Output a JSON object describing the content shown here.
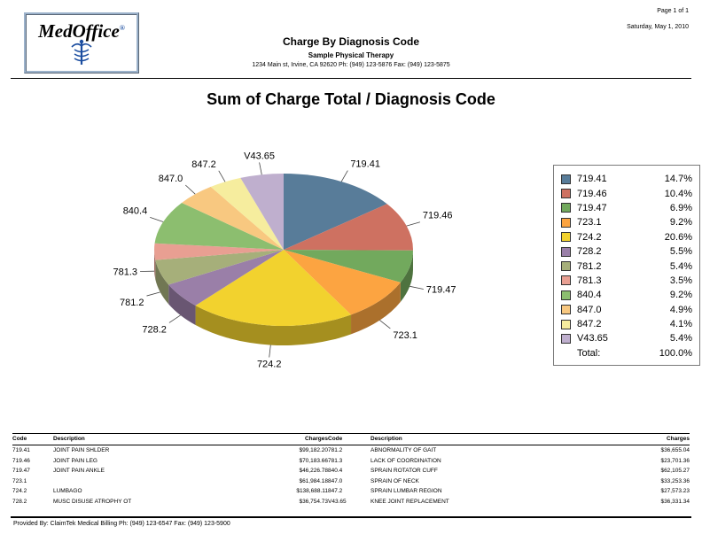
{
  "meta": {
    "page_label": "Page 1 of 1",
    "date": "Saturday, May 1, 2010"
  },
  "header": {
    "logo_text": "MedOffice",
    "logo_reg": "®",
    "title": "Charge By Diagnosis Code",
    "practice": "Sample Physical Therapy",
    "address": "1234 Main st, Irvine, CA 92620 Ph: (949) 123-5876 Fax: (949) 123-5875"
  },
  "chart_data": {
    "type": "pie",
    "style": "3d",
    "title": "Sum of Charge Total / Diagnosis Code",
    "legend_position": "right",
    "slices": [
      {
        "label": "719.41",
        "percent": 14.7,
        "value": 99182.2,
        "color": "#587C99"
      },
      {
        "label": "719.46",
        "percent": 10.4,
        "value": 70183.66,
        "color": "#CE7161"
      },
      {
        "label": "719.47",
        "percent": 6.9,
        "value": 46226.78,
        "color": "#72A95D"
      },
      {
        "label": "723.1",
        "percent": 9.2,
        "value": 61984.18,
        "color": "#FCA441"
      },
      {
        "label": "724.2",
        "percent": 20.6,
        "value": 138688.11,
        "color": "#F2D22E"
      },
      {
        "label": "728.2",
        "percent": 5.5,
        "value": 36754.73,
        "color": "#9A7FA8"
      },
      {
        "label": "781.2",
        "percent": 5.4,
        "value": 36655.04,
        "color": "#A6AF7A"
      },
      {
        "label": "781.3",
        "percent": 3.5,
        "value": 23701.36,
        "color": "#E89F92"
      },
      {
        "label": "840.4",
        "percent": 9.2,
        "value": 62105.27,
        "color": "#8CBE6F"
      },
      {
        "label": "847.0",
        "percent": 4.9,
        "value": 33253.36,
        "color": "#F8C880"
      },
      {
        "label": "847.2",
        "percent": 4.1,
        "value": 27573.23,
        "color": "#F6ED9E"
      },
      {
        "label": "V43.65",
        "percent": 5.4,
        "value": 36331.34,
        "color": "#BFAFCE"
      }
    ],
    "total": {
      "label": "Total:",
      "percent": "100.0%"
    }
  },
  "table": {
    "columns": [
      "Code",
      "Description",
      "Charges",
      "Code",
      "Description",
      "Charges"
    ],
    "rows": [
      [
        "719.41",
        "JOINT PAIN SHLDER",
        "$99,182.20",
        "781.2",
        "ABNORMALITY OF GAIT",
        "$36,655.04"
      ],
      [
        "719.46",
        "JOINT PAIN LEG",
        "$70,183.66",
        "781.3",
        "LACK OF COORDINATION",
        "$23,701.36"
      ],
      [
        "719.47",
        "JOINT PAIN ANKLE",
        "$46,226.78",
        "840.4",
        "SPRAIN ROTATOR CUFF",
        "$62,105.27"
      ],
      [
        "723.1",
        "",
        "$61,984.18",
        "847.0",
        "SPRAIN OF NECK",
        "$33,253.36"
      ],
      [
        "724.2",
        "LUMBAGO",
        "$138,688.11",
        "847.2",
        "SPRAIN LUMBAR REGION",
        "$27,573.23"
      ],
      [
        "728.2",
        "MUSC DISUSE ATROPHY OT",
        "$36,754.73",
        "V43.65",
        "KNEE JOINT REPLACEMENT",
        "$36,331.34"
      ]
    ]
  },
  "footer": {
    "text": "Provided By: ClaimTek Medical Billing Ph: (949) 123-6547 Fax: (949) 123-5900"
  }
}
